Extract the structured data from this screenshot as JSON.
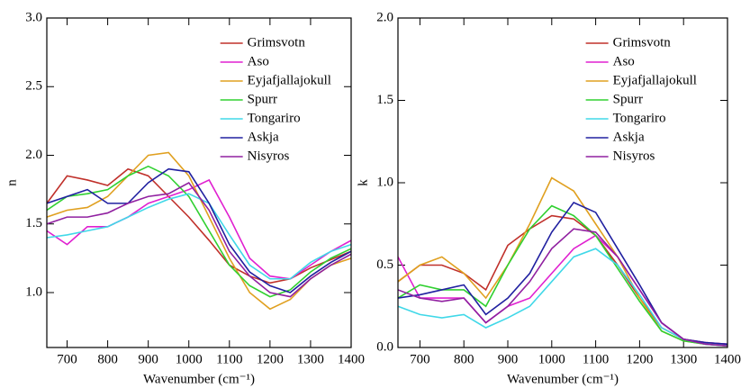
{
  "chart_data": [
    {
      "type": "line",
      "xlabel": "Wavenumber (cm⁻¹)",
      "ylabel": "n",
      "x": [
        650,
        700,
        750,
        800,
        850,
        900,
        950,
        1000,
        1050,
        1100,
        1150,
        1200,
        1250,
        1300,
        1350,
        1400
      ],
      "xlim": [
        650,
        1400
      ],
      "ylim": [
        0.6,
        3.0
      ],
      "xticks": [
        700,
        800,
        900,
        1000,
        1100,
        1200,
        1300,
        1400
      ],
      "yticks": [
        {
          "value": 1,
          "label": "1.0"
        },
        1.5,
        {
          "value": 2,
          "label": "2.0"
        },
        2.5,
        {
          "value": 3,
          "label": "3.0"
        }
      ],
      "legend": "upper right",
      "series": [
        {
          "name": "Grimsvotn",
          "color": "#c0302a",
          "values": [
            1.65,
            1.85,
            1.82,
            1.78,
            1.9,
            1.85,
            1.7,
            1.55,
            1.38,
            1.2,
            1.12,
            1.07,
            1.1,
            1.18,
            1.24,
            1.3
          ]
        },
        {
          "name": "Aso",
          "color": "#e020d0",
          "values": [
            1.45,
            1.35,
            1.48,
            1.48,
            1.55,
            1.65,
            1.7,
            1.75,
            1.82,
            1.55,
            1.25,
            1.12,
            1.1,
            1.2,
            1.3,
            1.38
          ]
        },
        {
          "name": "Eyjafjallajokull",
          "color": "#e0a020",
          "values": [
            1.55,
            1.6,
            1.62,
            1.7,
            1.85,
            2.0,
            2.02,
            1.85,
            1.55,
            1.25,
            1.0,
            0.88,
            0.95,
            1.1,
            1.2,
            1.25
          ]
        },
        {
          "name": "Spurr",
          "color": "#30d030",
          "values": [
            1.6,
            1.7,
            1.72,
            1.75,
            1.85,
            1.92,
            1.85,
            1.7,
            1.45,
            1.2,
            1.05,
            0.97,
            1.02,
            1.15,
            1.25,
            1.32
          ]
        },
        {
          "name": "Tongariro",
          "color": "#40d8e8",
          "values": [
            1.4,
            1.42,
            1.45,
            1.48,
            1.55,
            1.62,
            1.68,
            1.72,
            1.65,
            1.42,
            1.2,
            1.1,
            1.1,
            1.22,
            1.3,
            1.35
          ]
        },
        {
          "name": "Askja",
          "color": "#2020a0",
          "values": [
            1.65,
            1.7,
            1.75,
            1.65,
            1.65,
            1.8,
            1.9,
            1.88,
            1.65,
            1.35,
            1.15,
            1.05,
            1.0,
            1.12,
            1.22,
            1.3
          ]
        },
        {
          "name": "Nisyros",
          "color": "#9020a0",
          "values": [
            1.5,
            1.55,
            1.55,
            1.58,
            1.65,
            1.7,
            1.72,
            1.8,
            1.6,
            1.3,
            1.12,
            1.0,
            0.97,
            1.1,
            1.2,
            1.28
          ]
        }
      ]
    },
    {
      "type": "line",
      "xlabel": "Wavenumber (cm⁻¹)",
      "ylabel": "k",
      "x": [
        650,
        700,
        750,
        800,
        850,
        900,
        950,
        1000,
        1050,
        1100,
        1150,
        1200,
        1250,
        1300,
        1350,
        1400
      ],
      "xlim": [
        650,
        1400
      ],
      "ylim": [
        0,
        2
      ],
      "xticks": [
        700,
        800,
        900,
        1000,
        1100,
        1200,
        1300,
        1400
      ],
      "yticks": [
        {
          "value": 0,
          "label": "0.0"
        },
        0.5,
        {
          "value": 1,
          "label": "1.0"
        },
        1.5,
        {
          "value": 2,
          "label": "2.0"
        }
      ],
      "legend": "upper right",
      "series": [
        {
          "name": "Grimsvotn",
          "color": "#c0302a",
          "values": [
            0.4,
            0.5,
            0.5,
            0.45,
            0.35,
            0.62,
            0.72,
            0.8,
            0.78,
            0.68,
            0.5,
            0.3,
            0.12,
            0.05,
            0.03,
            0.02
          ]
        },
        {
          "name": "Aso",
          "color": "#e020d0",
          "values": [
            0.55,
            0.3,
            0.3,
            0.3,
            0.15,
            0.25,
            0.3,
            0.45,
            0.6,
            0.68,
            0.55,
            0.35,
            0.15,
            0.05,
            0.03,
            0.02
          ]
        },
        {
          "name": "Eyjafjallajokull",
          "color": "#e0a020",
          "values": [
            0.4,
            0.5,
            0.55,
            0.45,
            0.3,
            0.5,
            0.75,
            1.03,
            0.95,
            0.75,
            0.55,
            0.3,
            0.1,
            0.04,
            0.02,
            0.01
          ]
        },
        {
          "name": "Spurr",
          "color": "#30d030",
          "values": [
            0.3,
            0.38,
            0.35,
            0.35,
            0.25,
            0.5,
            0.72,
            0.86,
            0.8,
            0.68,
            0.48,
            0.28,
            0.1,
            0.04,
            0.02,
            0.01
          ]
        },
        {
          "name": "Tongariro",
          "color": "#40d8e8",
          "values": [
            0.25,
            0.2,
            0.18,
            0.2,
            0.12,
            0.18,
            0.25,
            0.4,
            0.55,
            0.6,
            0.5,
            0.32,
            0.12,
            0.05,
            0.02,
            0.01
          ]
        },
        {
          "name": "Askja",
          "color": "#2020a0",
          "values": [
            0.3,
            0.32,
            0.35,
            0.38,
            0.2,
            0.3,
            0.45,
            0.7,
            0.88,
            0.82,
            0.6,
            0.38,
            0.15,
            0.05,
            0.03,
            0.02
          ]
        },
        {
          "name": "Nisyros",
          "color": "#9020a0",
          "values": [
            0.35,
            0.3,
            0.28,
            0.3,
            0.15,
            0.25,
            0.4,
            0.6,
            0.72,
            0.7,
            0.55,
            0.35,
            0.15,
            0.05,
            0.02,
            0.01
          ]
        }
      ]
    }
  ]
}
